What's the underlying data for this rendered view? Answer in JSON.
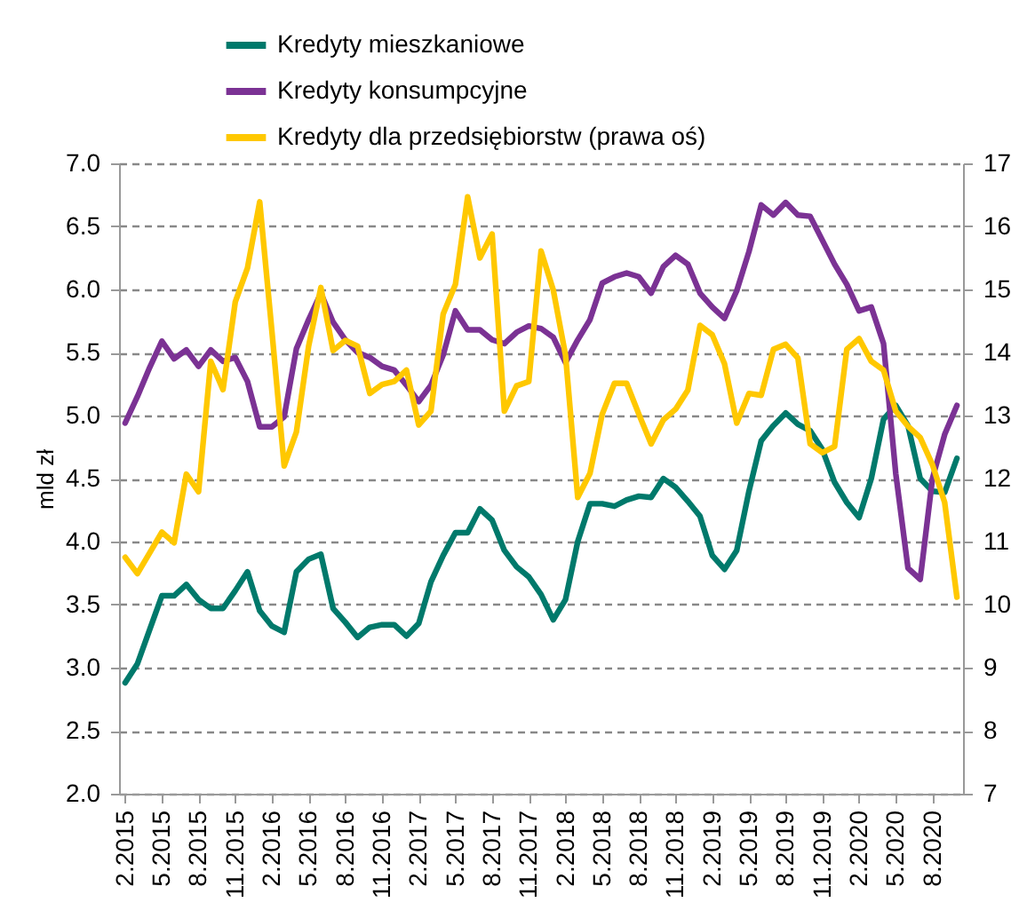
{
  "chart_data": {
    "type": "line",
    "ylabel": "mld zł",
    "legend": "top",
    "grid": "y",
    "line_style": "solid",
    "categories": [
      "2.2015",
      null,
      null,
      "5.2015",
      null,
      null,
      "8.2015",
      null,
      null,
      "11.2015",
      null,
      null,
      "2.2016",
      null,
      null,
      "5.2016",
      null,
      null,
      "8.2016",
      null,
      null,
      "11.2016",
      null,
      null,
      "2.2017",
      null,
      null,
      "5.2017",
      null,
      null,
      "8.2017",
      null,
      null,
      "11.2017",
      null,
      null,
      "2.2018",
      null,
      null,
      "5.2018",
      null,
      null,
      "8.2018",
      null,
      null,
      "11.2018",
      null,
      null,
      "2.2019",
      null,
      null,
      "5.2019",
      null,
      null,
      "8.2019",
      null,
      null,
      "11.2019",
      null,
      null,
      "2.2020",
      null,
      null,
      "5.2020",
      null,
      null,
      "8.2020",
      null,
      null
    ],
    "ylim": [
      2,
      7
    ],
    "yticks": [
      {
        "value": 2,
        "label": "2.0"
      },
      {
        "value": 2.5,
        "label": "2.5"
      },
      {
        "value": 3,
        "label": "3.0"
      },
      {
        "value": 3.5,
        "label": "3.5"
      },
      {
        "value": 4,
        "label": "4.0"
      },
      {
        "value": 4.5,
        "label": "4.5"
      },
      {
        "value": 5,
        "label": "5.0"
      },
      {
        "value": 5.5,
        "label": "5.5"
      },
      {
        "value": 6,
        "label": "6.0"
      },
      {
        "value": 6.5,
        "label": "6.5"
      },
      {
        "value": 7,
        "label": "7.0"
      }
    ],
    "y2lim": [
      7,
      17
    ],
    "y2ticks": [
      7,
      8,
      9,
      10,
      11,
      12,
      13,
      14,
      15,
      16,
      17
    ],
    "series": [
      {
        "name": "Kredyty mieszkaniowe",
        "color": "#00796b",
        "values": [
          2.88,
          3.03,
          3.3,
          3.57,
          3.57,
          3.66,
          3.54,
          3.47,
          3.47,
          3.61,
          3.76,
          3.45,
          3.33,
          3.28,
          3.76,
          3.86,
          3.9,
          3.47,
          3.36,
          3.24,
          3.32,
          3.34,
          3.34,
          3.25,
          3.35,
          3.68,
          3.89,
          4.07,
          4.07,
          4.26,
          4.17,
          3.93,
          3.8,
          3.72,
          3.58,
          3.38,
          3.54,
          4.0,
          4.3,
          4.3,
          4.28,
          4.33,
          4.36,
          4.35,
          4.5,
          4.43,
          4.32,
          4.2,
          3.89,
          3.78,
          3.93,
          4.4,
          4.8,
          4.92,
          5.02,
          4.93,
          4.88,
          4.73,
          4.47,
          4.31,
          4.19,
          4.5,
          4.97,
          5.08,
          4.92,
          4.5,
          4.4,
          4.39,
          4.66
        ]
      },
      {
        "name": "Kredyty konsumpcyjne",
        "color": "#7b3294",
        "values": [
          4.94,
          5.15,
          5.38,
          5.59,
          5.45,
          5.52,
          5.39,
          5.52,
          5.43,
          5.46,
          5.27,
          4.91,
          4.91,
          4.99,
          5.53,
          5.76,
          5.97,
          5.74,
          5.6,
          5.5,
          5.46,
          5.39,
          5.36,
          5.24,
          5.11,
          5.24,
          5.48,
          5.83,
          5.68,
          5.68,
          5.6,
          5.57,
          5.66,
          5.71,
          5.69,
          5.62,
          5.42,
          5.6,
          5.76,
          6.05,
          6.1,
          6.13,
          6.1,
          5.97,
          6.18,
          6.27,
          6.2,
          5.97,
          5.86,
          5.77,
          5.99,
          6.3,
          6.67,
          6.59,
          6.69,
          6.59,
          6.58,
          6.39,
          6.2,
          6.04,
          5.83,
          5.86,
          5.57,
          4.54,
          3.79,
          3.7,
          4.5,
          4.85,
          5.08
        ]
      },
      {
        "name": "Kredyty dla przedsiębiorstw (prawa oś)",
        "color": "#ffc800",
        "axis": "y2",
        "values": [
          10.75,
          10.49,
          10.82,
          11.15,
          10.98,
          12.07,
          11.79,
          13.86,
          13.41,
          14.8,
          15.34,
          16.39,
          14.33,
          12.2,
          12.74,
          14.1,
          15.03,
          14.03,
          14.19,
          14.1,
          13.35,
          13.49,
          13.54,
          13.72,
          12.85,
          13.07,
          14.61,
          15.08,
          16.47,
          15.5,
          15.88,
          13.07,
          13.47,
          13.54,
          15.61,
          14.99,
          13.96,
          11.7,
          12.08,
          13.02,
          13.51,
          13.51,
          13.02,
          12.55,
          12.93,
          13.1,
          13.4,
          14.43,
          14.28,
          13.82,
          12.88,
          13.35,
          13.32,
          14.05,
          14.13,
          13.91,
          12.55,
          12.41,
          12.51,
          14.05,
          14.22,
          13.86,
          13.72,
          13.07,
          12.83,
          12.65,
          12.22,
          11.62,
          10.12
        ]
      }
    ]
  }
}
